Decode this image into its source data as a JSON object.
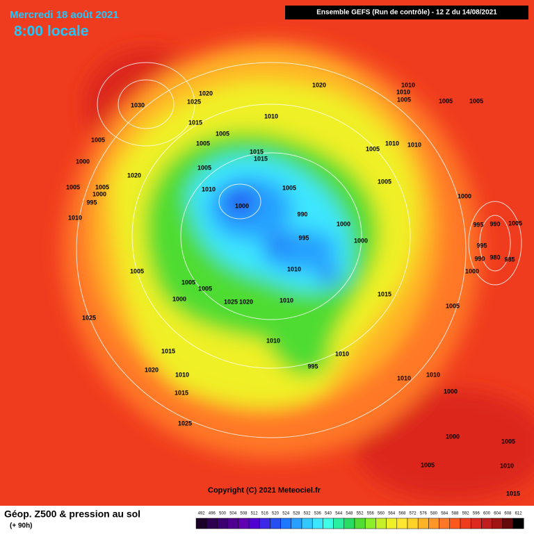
{
  "header": {
    "date": "Mercredi 18 août 2021",
    "time": "8:00 locale",
    "model": "Ensemble GEFS  (Run de contrôle)  - 12 Z du 14/08/2021"
  },
  "copyright": "Copyright (C) 2021 Meteociel.fr",
  "footer": {
    "title": "Géop. Z500 & pression au sol",
    "subtitle": "(+ 90h)"
  },
  "isobars": [
    1030,
    1020,
    1025,
    1015,
    1005,
    1000,
    1005,
    1005,
    1015,
    1015,
    1010,
    1020,
    1010,
    1010,
    1005,
    1005,
    1005,
    1005,
    1010,
    1010,
    1020,
    1005,
    1005,
    1005,
    1000,
    995,
    1010,
    1010,
    1005,
    1000,
    990,
    1005,
    1000,
    995,
    990,
    1005,
    1000,
    995,
    1000,
    995,
    990,
    980,
    985,
    1000,
    1005,
    1010,
    1005,
    1005,
    1000,
    1025,
    1020,
    1010,
    1015,
    1005,
    1025,
    1010,
    1015,
    1010,
    995,
    1020,
    1010,
    1015,
    1010,
    1010,
    1000,
    1025,
    1000,
    1005,
    1005,
    1010,
    1015
  ],
  "legend": {
    "values": [
      492,
      496,
      500,
      504,
      508,
      512,
      516,
      520,
      524,
      528,
      532,
      536,
      540,
      544,
      548,
      552,
      556,
      560,
      564,
      568,
      572,
      576,
      580,
      584,
      588,
      592,
      596,
      600,
      604,
      608,
      612
    ],
    "colors": [
      "#1a0028",
      "#2d0050",
      "#3c0070",
      "#500090",
      "#6000b0",
      "#5000d0",
      "#3c28e6",
      "#2850f0",
      "#1e78ff",
      "#28a0ff",
      "#32c8ff",
      "#3ce6ff",
      "#3cffe6",
      "#28f0a0",
      "#28dc64",
      "#50dc32",
      "#8cf028",
      "#c8f028",
      "#f0f028",
      "#ffe632",
      "#ffd228",
      "#ffb428",
      "#ff9628",
      "#ff7828",
      "#ff5a1e",
      "#f03c1e",
      "#dc281e",
      "#be1e1e",
      "#a01414",
      "#640a0a",
      "#000000"
    ]
  }
}
